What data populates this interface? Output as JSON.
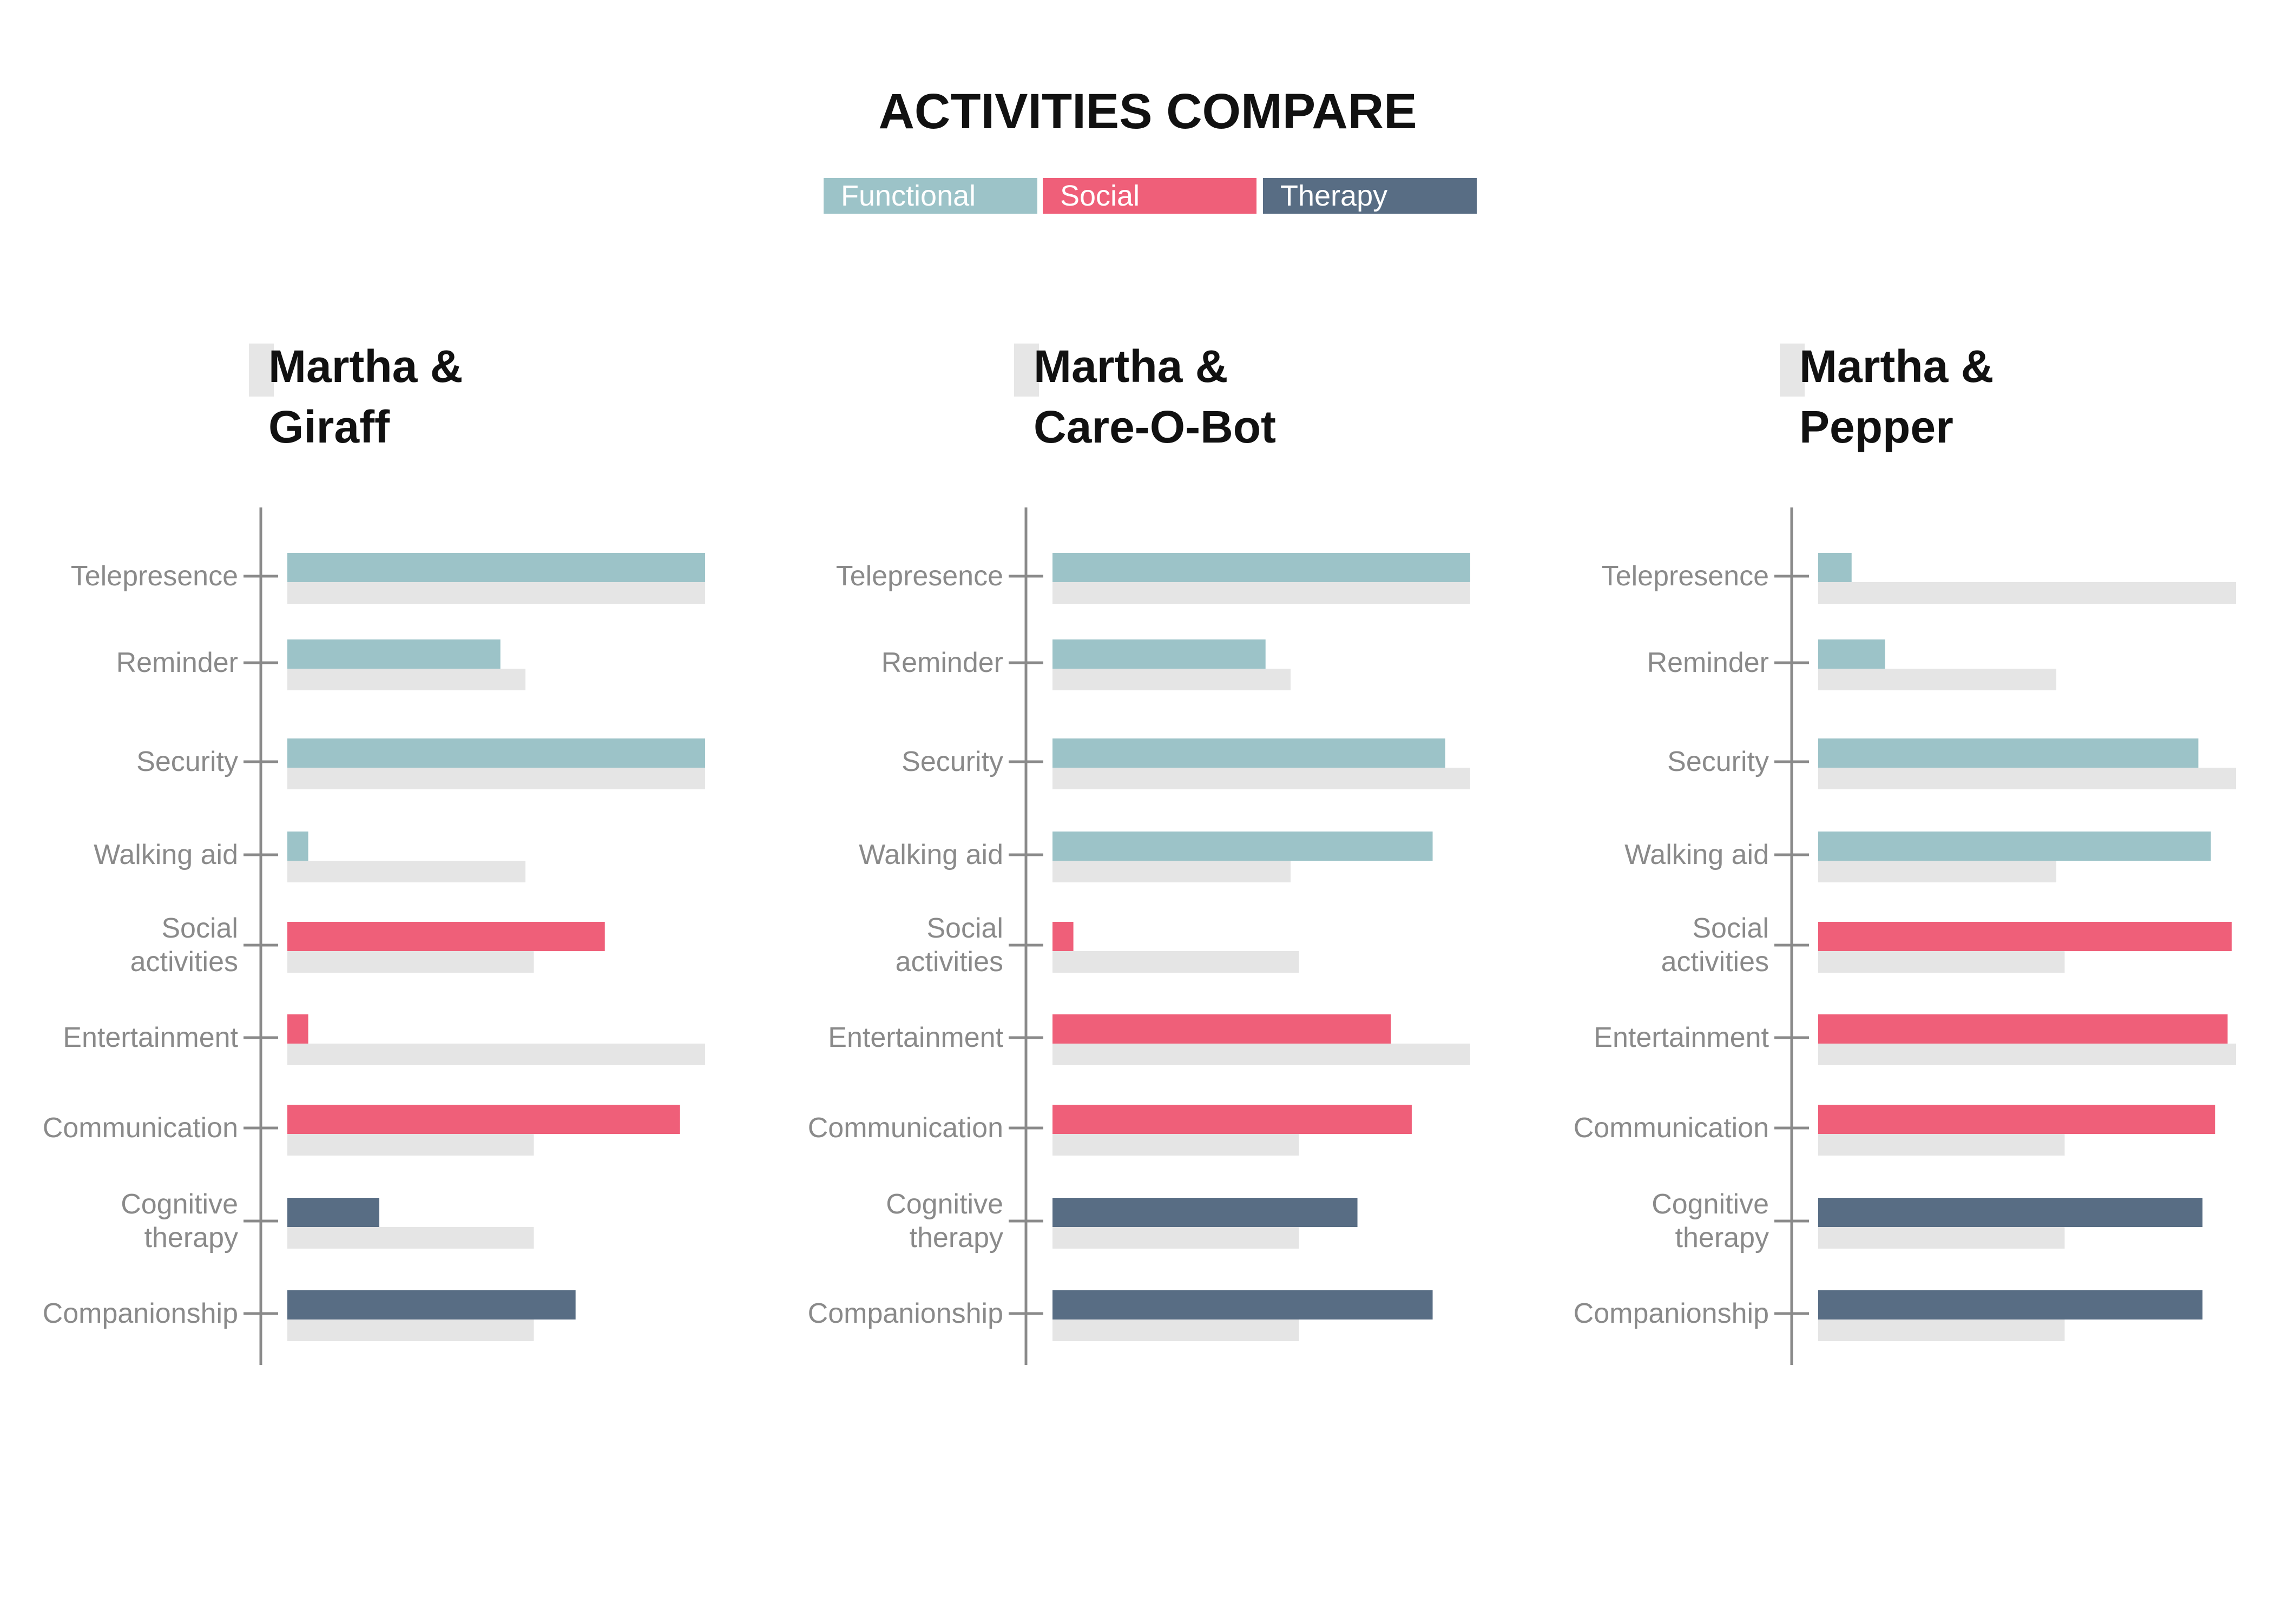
{
  "title": "ACTIVITIES COMPARE",
  "colors": {
    "Functional": "#9cc3c8",
    "Social": "#ef5f79",
    "Therapy": "#586d84",
    "reference": "#e5e5e5",
    "axis": "#8a8a8a"
  },
  "legend": [
    "Functional",
    "Social",
    "Therapy"
  ],
  "chart_data": [
    {
      "type": "bar",
      "title_lines": [
        "Martha &",
        "Giraff"
      ],
      "categories": [
        {
          "lines": [
            "Telepresence"
          ],
          "group": "Functional"
        },
        {
          "lines": [
            "Reminder"
          ],
          "group": "Functional"
        },
        {
          "lines": [
            "Security"
          ],
          "group": "Functional"
        },
        {
          "lines": [
            "Walking aid"
          ],
          "group": "Functional"
        },
        {
          "lines": [
            "Social",
            "activities"
          ],
          "group": "Social"
        },
        {
          "lines": [
            "Entertainment"
          ],
          "group": "Social"
        },
        {
          "lines": [
            "Communication"
          ],
          "group": "Social"
        },
        {
          "lines": [
            "Cognitive",
            "therapy"
          ],
          "group": "Therapy"
        },
        {
          "lines": [
            "Companionship"
          ],
          "group": "Therapy"
        }
      ],
      "values": [
        100,
        51,
        100,
        5,
        76,
        5,
        94,
        22,
        69
      ],
      "reference": [
        100,
        57,
        100,
        57,
        59,
        100,
        59,
        59,
        59
      ],
      "xlim": [
        0,
        100
      ]
    },
    {
      "type": "bar",
      "title_lines": [
        "Martha &",
        "Care-O-Bot"
      ],
      "categories": [
        {
          "lines": [
            "Telepresence"
          ],
          "group": "Functional"
        },
        {
          "lines": [
            "Reminder"
          ],
          "group": "Functional"
        },
        {
          "lines": [
            "Security"
          ],
          "group": "Functional"
        },
        {
          "lines": [
            "Walking aid"
          ],
          "group": "Functional"
        },
        {
          "lines": [
            "Social",
            "activities"
          ],
          "group": "Social"
        },
        {
          "lines": [
            "Entertainment"
          ],
          "group": "Social"
        },
        {
          "lines": [
            "Communication"
          ],
          "group": "Social"
        },
        {
          "lines": [
            "Cognitive",
            "therapy"
          ],
          "group": "Therapy"
        },
        {
          "lines": [
            "Companionship"
          ],
          "group": "Therapy"
        }
      ],
      "values": [
        100,
        51,
        94,
        91,
        5,
        81,
        86,
        73,
        91
      ],
      "reference": [
        100,
        57,
        100,
        57,
        59,
        100,
        59,
        59,
        59
      ],
      "xlim": [
        0,
        100
      ]
    },
    {
      "type": "bar",
      "title_lines": [
        "Martha &",
        "Pepper"
      ],
      "categories": [
        {
          "lines": [
            "Telepresence"
          ],
          "group": "Functional"
        },
        {
          "lines": [
            "Reminder"
          ],
          "group": "Functional"
        },
        {
          "lines": [
            "Security"
          ],
          "group": "Functional"
        },
        {
          "lines": [
            "Walking aid"
          ],
          "group": "Functional"
        },
        {
          "lines": [
            "Social",
            "activities"
          ],
          "group": "Social"
        },
        {
          "lines": [
            "Entertainment"
          ],
          "group": "Social"
        },
        {
          "lines": [
            "Communication"
          ],
          "group": "Social"
        },
        {
          "lines": [
            "Cognitive",
            "therapy"
          ],
          "group": "Therapy"
        },
        {
          "lines": [
            "Companionship"
          ],
          "group": "Therapy"
        }
      ],
      "values": [
        8,
        16,
        91,
        94,
        99,
        98,
        95,
        92,
        92
      ],
      "reference": [
        100,
        57,
        100,
        57,
        59,
        100,
        59,
        59,
        59
      ],
      "xlim": [
        0,
        100
      ]
    }
  ]
}
